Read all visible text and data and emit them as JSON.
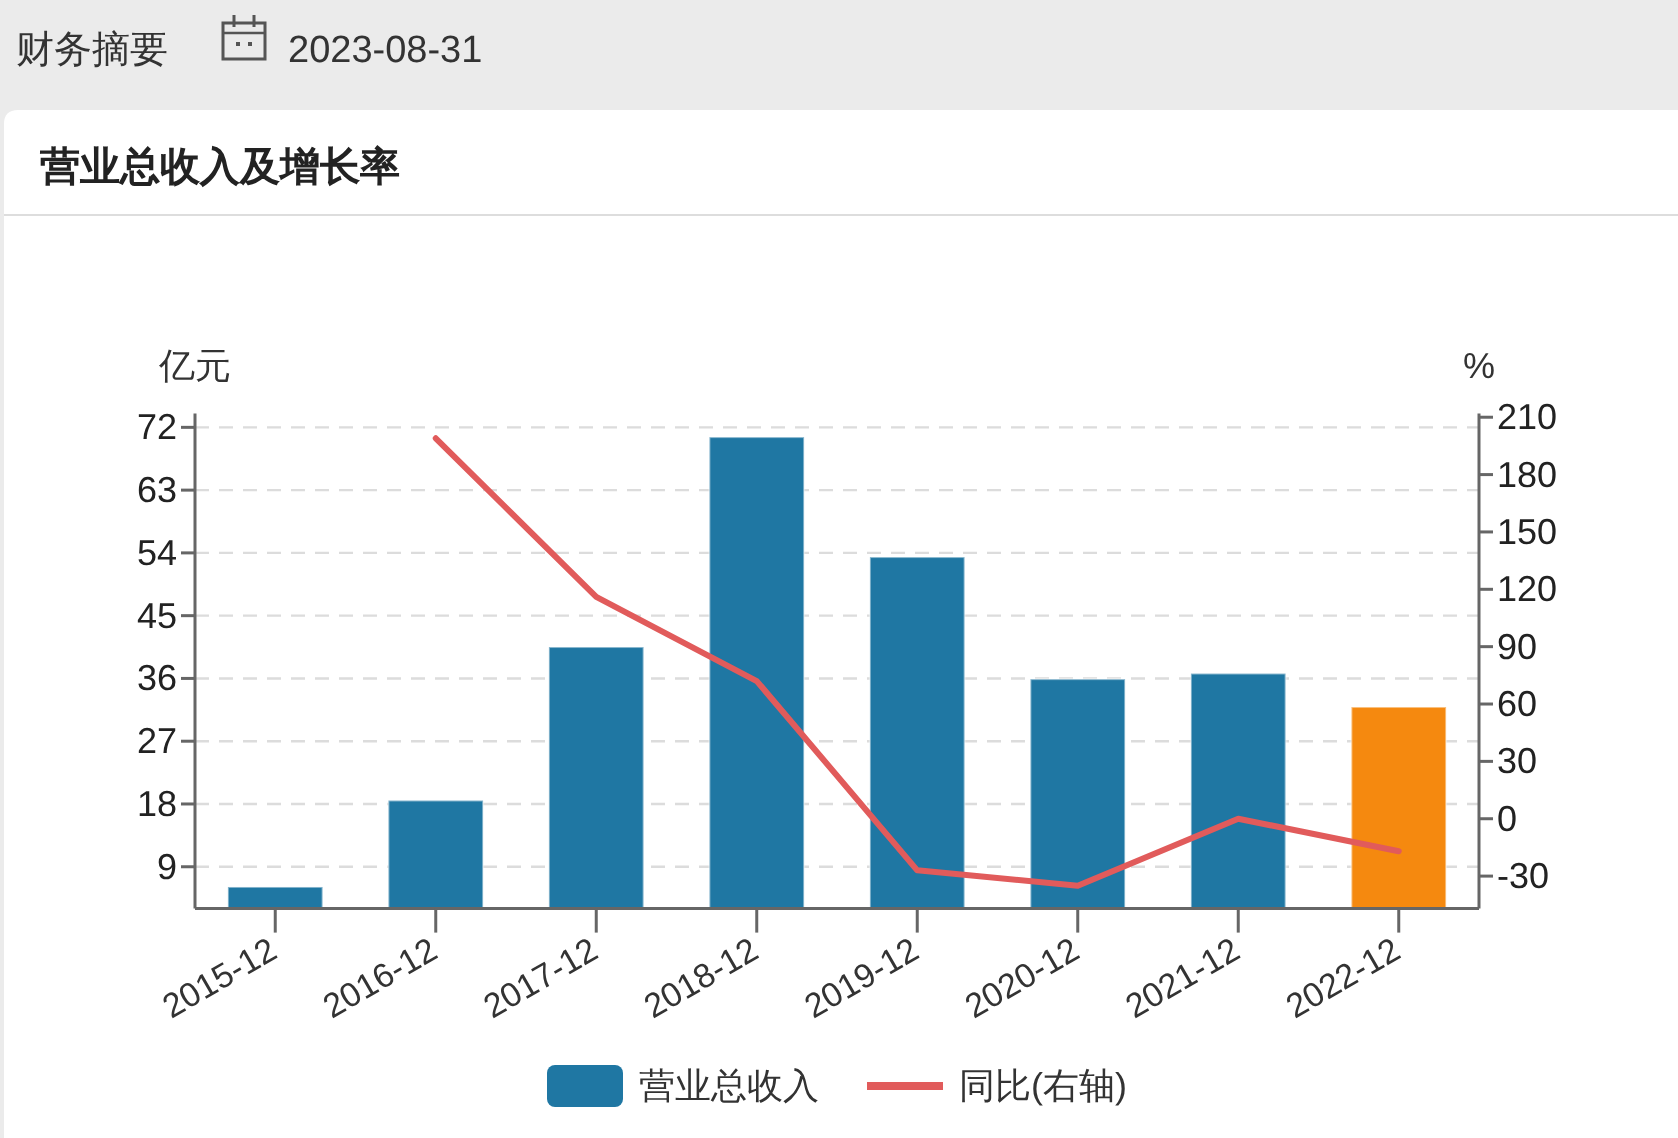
{
  "chart_data": {
    "type": "bar",
    "title": "营业总收入及增长率",
    "annotations": [
      "财务摘要",
      "2023-08-31"
    ],
    "ylabel": "亿元",
    "y2label": "%",
    "categories": [
      "2015-12",
      "2016-12",
      "2017-12",
      "2018-12",
      "2019-12",
      "2020-12",
      "2021-12",
      "2022-12"
    ],
    "series": [
      {
        "name": "营业总收入",
        "color": "#1f77a3",
        "colors": [
          "#1f77a3",
          "#1f77a3",
          "#1f77a3",
          "#1f77a3",
          "#1f77a3",
          "#1f77a3",
          "#1f77a3",
          "#f5890f"
        ],
        "values": [
          6.1,
          18.5,
          40.5,
          70.6,
          53.4,
          35.9,
          36.7,
          31.9
        ]
      },
      {
        "name": "同比(右轴)",
        "type": "line",
        "axis": "y2",
        "color": "#e15b5b",
        "values": [
          null,
          199,
          116,
          72,
          -27,
          -35,
          0,
          -17
        ]
      }
    ],
    "ylim": [
      3,
      74
    ],
    "yticks": [
      9,
      18,
      27,
      36,
      45,
      54,
      63,
      72
    ],
    "y2lim": [
      -47,
      212
    ],
    "y2ticks": [
      -30,
      0,
      30,
      60,
      90,
      120,
      150,
      180,
      210
    ],
    "grid": "y",
    "legend": "bottom",
    "marker": "none",
    "line_style": "solid"
  }
}
